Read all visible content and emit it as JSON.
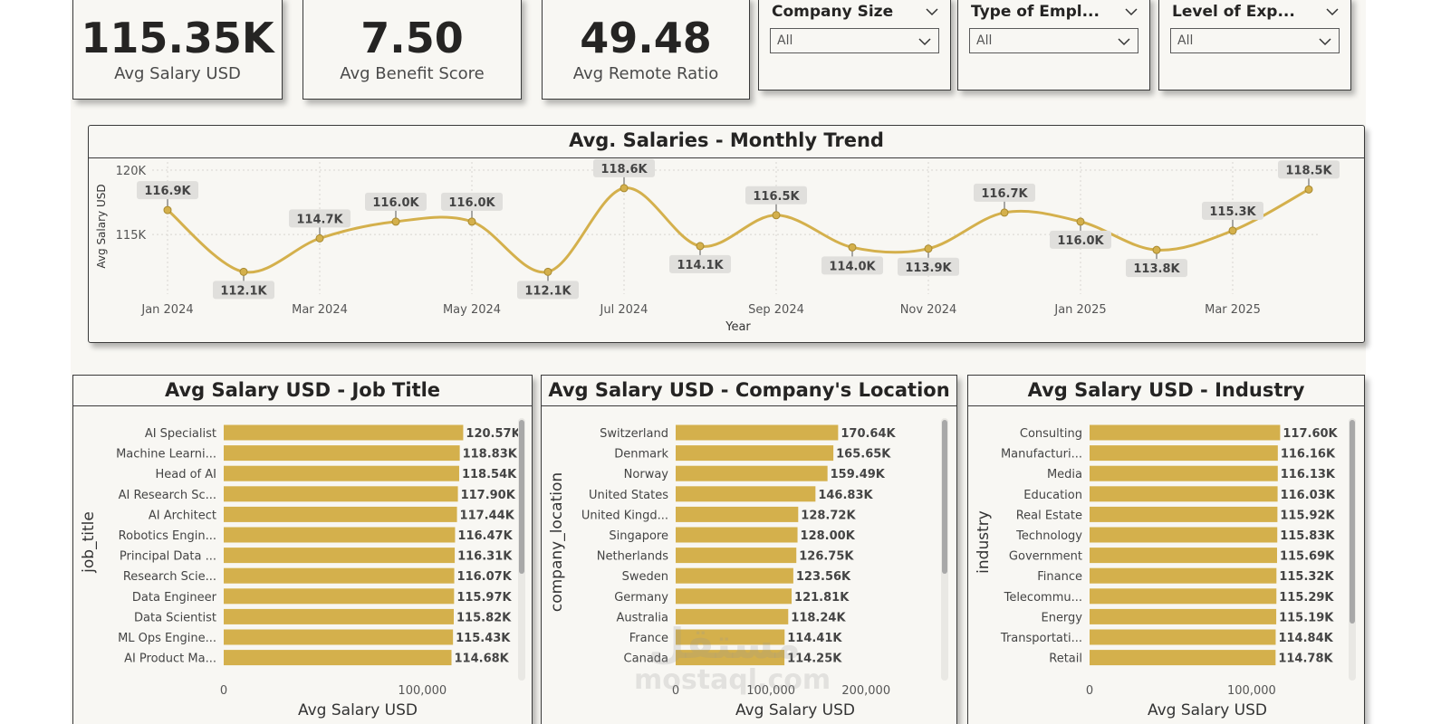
{
  "kpis": [
    {
      "value": "115.35K",
      "label": "Avg Salary USD"
    },
    {
      "value": "7.50",
      "label": "Avg Benefit Score"
    },
    {
      "value": "49.48",
      "label": "Avg Remote Ratio"
    }
  ],
  "slicers": [
    {
      "title": "Company Size",
      "value": "All"
    },
    {
      "title": "Type of Empl...",
      "value": "All"
    },
    {
      "title": "Level of Exp...",
      "value": "All"
    }
  ],
  "icons": {
    "slicer_dropdown": "chevron-down-icon"
  },
  "colors": {
    "accent": "#d4b04c",
    "background": "#f8f7f3",
    "text": "#252423"
  },
  "watermark": {
    "arabic": "مستقل",
    "latin": "mostaql.com"
  },
  "chart_data": [
    {
      "type": "line",
      "title": "Avg. Salaries - Monthly Trend",
      "xlabel": "Year",
      "ylabel": "Avg Salary USD",
      "x": [
        "Jan 2024",
        "Feb 2024",
        "Mar 2024",
        "Apr 2024",
        "May 2024",
        "Jun 2024",
        "Jul 2024",
        "Aug 2024",
        "Sep 2024",
        "Oct 2024",
        "Nov 2024",
        "Dec 2024",
        "Jan 2025",
        "Feb 2025",
        "Mar 2025",
        "Apr 2025"
      ],
      "x_tick_labels": [
        "Jan 2024",
        "Mar 2024",
        "May 2024",
        "Jul 2024",
        "Sep 2024",
        "Nov 2024",
        "Jan 2025",
        "Mar 2025"
      ],
      "values": [
        116900,
        112100,
        114700,
        116000,
        116000,
        112100,
        118600,
        114100,
        116500,
        114000,
        113900,
        116700,
        116000,
        113800,
        115300,
        118500
      ],
      "data_labels": [
        "116.9K",
        "112.1K",
        "114.7K",
        "116.0K",
        "116.0K",
        "112.1K",
        "118.6K",
        "114.1K",
        "116.5K",
        "114.0K",
        "113.9K",
        "116.7K",
        "116.0K",
        "113.8K",
        "115.3K",
        "118.5K"
      ],
      "y_ticks": [
        "115K",
        "120K"
      ],
      "ylim": [
        111000,
        120000
      ],
      "grid": true,
      "color": "#d4b04c"
    },
    {
      "type": "bar",
      "orientation": "horizontal",
      "title": "Avg Salary USD - Job Title",
      "ylabel": "job_title",
      "xlabel": "Avg Salary USD",
      "categories": [
        "AI Specialist",
        "Machine Learni...",
        "Head of AI",
        "AI Research Sc...",
        "AI Architect",
        "Robotics Engin...",
        "Principal Data ...",
        "Research Scie...",
        "Data Engineer",
        "Data Scientist",
        "ML Ops Engine...",
        "AI Product Ma..."
      ],
      "values": [
        120570,
        118830,
        118540,
        117900,
        117440,
        116470,
        116310,
        116070,
        115970,
        115820,
        115430,
        114680
      ],
      "data_labels": [
        "120.57K",
        "118.83K",
        "118.54K",
        "117.90K",
        "117.44K",
        "116.47K",
        "116.31K",
        "116.07K",
        "115.97K",
        "115.82K",
        "115.43K",
        "114.68K"
      ],
      "x_tick_labels": [
        "0",
        "100,000"
      ],
      "x_ticks": [
        0,
        100000
      ],
      "xlim": [
        0,
        145000
      ],
      "color": "#d4b04c"
    },
    {
      "type": "bar",
      "orientation": "horizontal",
      "title": "Avg Salary USD - Company's Location",
      "ylabel": "company_location",
      "xlabel": "Avg Salary USD",
      "categories": [
        "Switzerland",
        "Denmark",
        "Norway",
        "United States",
        "United Kingd...",
        "Singapore",
        "Netherlands",
        "Sweden",
        "Germany",
        "Australia",
        "France",
        "Canada"
      ],
      "values": [
        170640,
        165650,
        159490,
        146830,
        128720,
        128000,
        126750,
        123560,
        121810,
        118240,
        114410,
        114250
      ],
      "data_labels": [
        "170.64K",
        "165.65K",
        "159.49K",
        "146.83K",
        "128.72K",
        "128.00K",
        "126.75K",
        "123.56K",
        "121.81K",
        "118.24K",
        "114.41K",
        "114.25K"
      ],
      "x_tick_labels": [
        "0",
        "100,000",
        "200,000"
      ],
      "x_ticks": [
        0,
        100000,
        200000
      ],
      "xlim": [
        0,
        254000
      ],
      "color": "#d4b04c"
    },
    {
      "type": "bar",
      "orientation": "horizontal",
      "title": "Avg Salary USD - Industry",
      "ylabel": "industry",
      "xlabel": "Avg Salary USD",
      "categories": [
        "Consulting",
        "Manufacturi...",
        "Media",
        "Education",
        "Real Estate",
        "Technology",
        "Government",
        "Finance",
        "Telecommu...",
        "Energy",
        "Transportati...",
        "Retail"
      ],
      "values": [
        117600,
        116160,
        116130,
        116030,
        115920,
        115830,
        115690,
        115320,
        115290,
        115190,
        114840,
        114780
      ],
      "data_labels": [
        "117.60K",
        "116.16K",
        "116.13K",
        "116.03K",
        "115.92K",
        "115.83K",
        "115.69K",
        "115.32K",
        "115.29K",
        "115.19K",
        "114.84K",
        "114.78K"
      ],
      "x_tick_labels": [
        "0",
        "100,000"
      ],
      "x_ticks": [
        0,
        100000
      ],
      "xlim": [
        0,
        147000
      ],
      "color": "#d4b04c"
    }
  ]
}
